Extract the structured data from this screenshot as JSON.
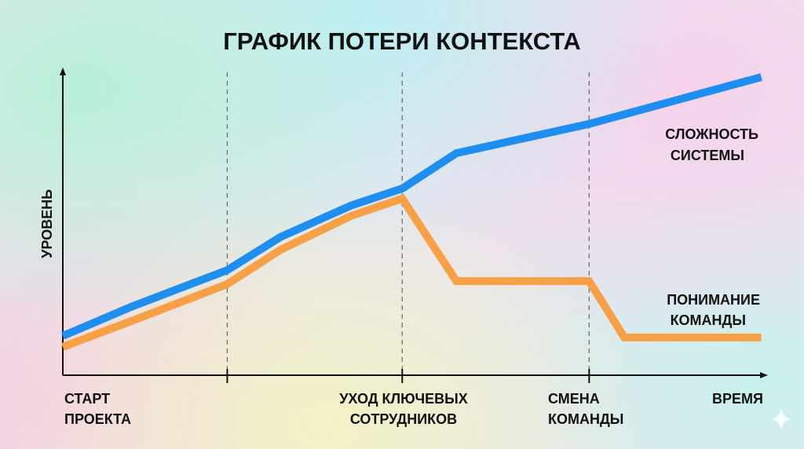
{
  "chart_data": {
    "type": "line",
    "title": "ГРАФИК ПОТЕРИ КОНТЕКСТА",
    "xlabel": "ВРЕМЯ",
    "ylabel": "УРОВЕНЬ",
    "xlim": [
      0,
      100
    ],
    "ylim": [
      0,
      100
    ],
    "grid": false,
    "milestones": [
      {
        "x": 0,
        "label_lines": [
          "СТАРТ",
          "ПРОЕКТА"
        ],
        "dashed": false
      },
      {
        "x": 23.4,
        "label_lines": [],
        "dashed": true
      },
      {
        "x": 48.3,
        "label_lines": [
          "УХОД КЛЮЧЕВЫХ",
          "СОТРУДНИКОВ"
        ],
        "dashed": true
      },
      {
        "x": 74.9,
        "label_lines": [
          "СМЕНА",
          "КОМАНДЫ"
        ],
        "dashed": true
      }
    ],
    "series": [
      {
        "name": "СЛОЖНОСТЬ СИСТЕМЫ",
        "name_lines": [
          "СЛОЖНОСТЬ",
          "СИСТЕМЫ"
        ],
        "color": "#1e8ff0",
        "x": [
          0,
          10,
          23.4,
          31,
          41,
          48.3,
          56,
          74.9,
          99.4
        ],
        "y": [
          12.9,
          22.7,
          34.5,
          45.4,
          55.7,
          61.3,
          72.9,
          82.5,
          97.9
        ]
      },
      {
        "name": "ПОНИМАНИЕ КОМАНДЫ",
        "name_lines": [
          "ПОНИМАНИЕ",
          "КОМАНДЫ"
        ],
        "color": "#f7a045",
        "x": [
          0,
          10,
          23.4,
          31,
          41,
          48.3,
          56,
          74.9,
          79.9,
          99.4
        ],
        "y": [
          9.3,
          18,
          29.9,
          41.2,
          52.3,
          58,
          30.9,
          30.9,
          12.4,
          12.4
        ]
      }
    ]
  }
}
